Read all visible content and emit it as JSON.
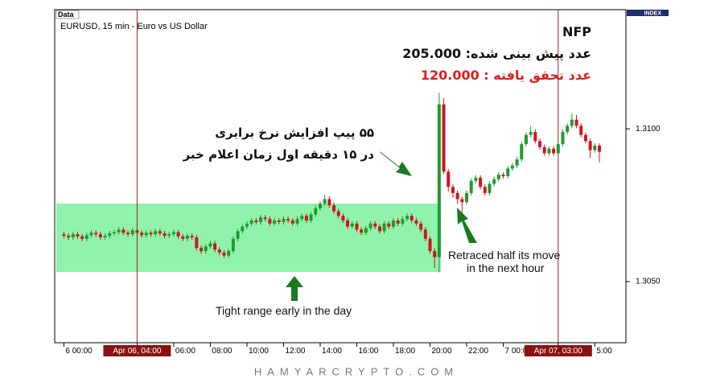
{
  "chart_data": {
    "type": "candlestick",
    "window_label": "Data",
    "title": "EURUSD, 15 min - Euro vs US Dollar",
    "index_label": "INDEX",
    "up_color": "#1f9a2e",
    "down_color": "#d0141e",
    "grid": false,
    "xlim": [
      -0.5,
      30.7
    ],
    "xticks": [
      {
        "value": 0,
        "label": "6 00:00"
      },
      {
        "value": 4,
        "label": "Apr 06, 04:00",
        "highlight": true
      },
      {
        "value": 6,
        "label": "06:00"
      },
      {
        "value": 8,
        "label": "08:00"
      },
      {
        "value": 10,
        "label": "10:00"
      },
      {
        "value": 12,
        "label": "12:00"
      },
      {
        "value": 14,
        "label": "14:00"
      },
      {
        "value": 16,
        "label": "16:00"
      },
      {
        "value": 18,
        "label": "18:00"
      },
      {
        "value": 20,
        "label": "20:00"
      },
      {
        "value": 22,
        "label": "22:00"
      },
      {
        "value": 24,
        "label": "7 00:00"
      },
      {
        "value": 27,
        "label": "Apr 07, 03:00",
        "highlight": true
      },
      {
        "value": 29,
        "label": "5:00"
      }
    ],
    "ylim": [
      1.303,
      1.3139
    ],
    "yticks": [
      {
        "value": 1.305,
        "label": "1.3050"
      },
      {
        "value": 1.31,
        "label": "1.3100"
      }
    ],
    "x": [
      0,
      0.25,
      0.5,
      0.75,
      1,
      1.25,
      1.5,
      1.75,
      2,
      2.25,
      2.5,
      2.75,
      3,
      3.25,
      3.5,
      3.75,
      4,
      4.25,
      4.5,
      4.75,
      5,
      5.25,
      5.5,
      5.75,
      6,
      6.25,
      6.5,
      6.75,
      7,
      7.25,
      7.5,
      7.75,
      8,
      8.25,
      8.5,
      8.75,
      9,
      9.25,
      9.5,
      9.75,
      10,
      10.25,
      10.5,
      10.75,
      11,
      11.25,
      11.5,
      11.75,
      12,
      12.25,
      12.5,
      12.75,
      13,
      13.25,
      13.5,
      13.75,
      14,
      14.25,
      14.5,
      14.75,
      15,
      15.25,
      15.5,
      15.75,
      16,
      16.25,
      16.5,
      16.75,
      17,
      17.25,
      17.5,
      17.75,
      18,
      18.25,
      18.5,
      18.75,
      19,
      19.25,
      19.5,
      19.75,
      20,
      20.25,
      20.5,
      20.75,
      21,
      21.25,
      21.5,
      21.75,
      22,
      22.25,
      22.5,
      22.75,
      23,
      23.25,
      23.5,
      23.75,
      24,
      24.25,
      24.5,
      24.75,
      25,
      25.25,
      25.5,
      25.75,
      26,
      26.25,
      26.5,
      26.75,
      27,
      27.25,
      27.5,
      27.75,
      28,
      28.25,
      28.5,
      28.75,
      29,
      29.25
    ],
    "candles": [
      [
        1.30655,
        1.30663,
        1.30642,
        1.3065
      ],
      [
        1.3065,
        1.30658,
        1.30637,
        1.30645
      ],
      [
        1.30645,
        1.30663,
        1.30637,
        1.30655
      ],
      [
        1.30655,
        1.30663,
        1.3064,
        1.30648
      ],
      [
        1.30648,
        1.30656,
        1.30632,
        1.3064
      ],
      [
        1.3064,
        1.3066,
        1.30632,
        1.30652
      ],
      [
        1.30652,
        1.30668,
        1.30644,
        1.3066
      ],
      [
        1.3066,
        1.30668,
        1.30647,
        1.30655
      ],
      [
        1.30655,
        1.30663,
        1.30637,
        1.30645
      ],
      [
        1.30645,
        1.30658,
        1.30637,
        1.3065
      ],
      [
        1.3065,
        1.30666,
        1.30642,
        1.30658
      ],
      [
        1.30658,
        1.3067,
        1.3065,
        1.30662
      ],
      [
        1.30662,
        1.30678,
        1.30654,
        1.3067
      ],
      [
        1.3067,
        1.30678,
        1.30652,
        1.3066
      ],
      [
        1.3066,
        1.30668,
        1.30647,
        1.30655
      ],
      [
        1.30655,
        1.30676,
        1.30647,
        1.30668
      ],
      [
        1.30668,
        1.30676,
        1.30652,
        1.3066
      ],
      [
        1.3066,
        1.30668,
        1.30644,
        1.30652
      ],
      [
        1.30652,
        1.30668,
        1.30644,
        1.3066
      ],
      [
        1.3066,
        1.30668,
        1.30647,
        1.30655
      ],
      [
        1.30655,
        1.30673,
        1.30647,
        1.30665
      ],
      [
        1.30665,
        1.30673,
        1.3065,
        1.30658
      ],
      [
        1.30658,
        1.30666,
        1.30642,
        1.3065
      ],
      [
        1.3065,
        1.30663,
        1.30642,
        1.30655
      ],
      [
        1.30655,
        1.3067,
        1.30647,
        1.30662
      ],
      [
        1.30662,
        1.3067,
        1.3064,
        1.30648
      ],
      [
        1.30648,
        1.30656,
        1.30632,
        1.3064
      ],
      [
        1.3064,
        1.30658,
        1.30632,
        1.3065
      ],
      [
        1.3065,
        1.30658,
        1.30637,
        1.30645
      ],
      [
        1.30645,
        1.30653,
        1.30602,
        1.3061
      ],
      [
        1.3061,
        1.30618,
        1.30592,
        1.306
      ],
      [
        1.306,
        1.30623,
        1.30592,
        1.30615
      ],
      [
        1.30615,
        1.30633,
        1.30607,
        1.30625
      ],
      [
        1.30625,
        1.30633,
        1.30597,
        1.30605
      ],
      [
        1.30605,
        1.30613,
        1.30587,
        1.30595
      ],
      [
        1.30595,
        1.30603,
        1.30577,
        1.30585
      ],
      [
        1.30585,
        1.30608,
        1.30577,
        1.306
      ],
      [
        1.306,
        1.30648,
        1.30592,
        1.3064
      ],
      [
        1.3064,
        1.30673,
        1.30632,
        1.30665
      ],
      [
        1.30665,
        1.30688,
        1.30657,
        1.3068
      ],
      [
        1.3068,
        1.30698,
        1.30672,
        1.3069
      ],
      [
        1.3069,
        1.30708,
        1.30682,
        1.307
      ],
      [
        1.307,
        1.30708,
        1.30687,
        1.30695
      ],
      [
        1.30695,
        1.30718,
        1.30687,
        1.3071
      ],
      [
        1.3071,
        1.30718,
        1.30697,
        1.30705
      ],
      [
        1.30705,
        1.30713,
        1.30682,
        1.3069
      ],
      [
        1.3069,
        1.30708,
        1.30682,
        1.307
      ],
      [
        1.307,
        1.30708,
        1.30687,
        1.30695
      ],
      [
        1.30695,
        1.30713,
        1.30687,
        1.30705
      ],
      [
        1.30705,
        1.30713,
        1.30692,
        1.307
      ],
      [
        1.307,
        1.30708,
        1.30682,
        1.3069
      ],
      [
        1.3069,
        1.30713,
        1.30682,
        1.30705
      ],
      [
        1.30705,
        1.30723,
        1.30697,
        1.30715
      ],
      [
        1.30715,
        1.30723,
        1.30692,
        1.307
      ],
      [
        1.307,
        1.30728,
        1.30692,
        1.3072
      ],
      [
        1.3072,
        1.30748,
        1.30712,
        1.3074
      ],
      [
        1.3074,
        1.30763,
        1.30732,
        1.30755
      ],
      [
        1.30755,
        1.30785,
        1.30747,
        1.3077
      ],
      [
        1.3077,
        1.3078,
        1.30742,
        1.3075
      ],
      [
        1.3075,
        1.30758,
        1.30722,
        1.3073
      ],
      [
        1.3073,
        1.30738,
        1.30707,
        1.30715
      ],
      [
        1.30715,
        1.30723,
        1.30692,
        1.307
      ],
      [
        1.307,
        1.30708,
        1.30672,
        1.3068
      ],
      [
        1.3068,
        1.30698,
        1.30672,
        1.3069
      ],
      [
        1.3069,
        1.30698,
        1.30662,
        1.3067
      ],
      [
        1.3067,
        1.30678,
        1.30652,
        1.3066
      ],
      [
        1.3066,
        1.30683,
        1.30652,
        1.30675
      ],
      [
        1.30675,
        1.30698,
        1.30667,
        1.3069
      ],
      [
        1.3069,
        1.30698,
        1.30672,
        1.3068
      ],
      [
        1.3068,
        1.30688,
        1.30657,
        1.30665
      ],
      [
        1.30665,
        1.30698,
        1.30657,
        1.3069
      ],
      [
        1.3069,
        1.30698,
        1.30672,
        1.3068
      ],
      [
        1.3068,
        1.30708,
        1.30672,
        1.307
      ],
      [
        1.307,
        1.30708,
        1.30682,
        1.3069
      ],
      [
        1.3069,
        1.30713,
        1.30682,
        1.30705
      ],
      [
        1.30705,
        1.30723,
        1.30697,
        1.30715
      ],
      [
        1.30715,
        1.30723,
        1.30692,
        1.307
      ],
      [
        1.307,
        1.30708,
        1.30682,
        1.3069
      ],
      [
        1.3069,
        1.30698,
        1.30662,
        1.3067
      ],
      [
        1.3067,
        1.30678,
        1.30632,
        1.3064
      ],
      [
        1.3064,
        1.30648,
        1.30592,
        1.306
      ],
      [
        1.306,
        1.30608,
        1.30545,
        1.3058
      ],
      [
        1.3058,
        1.31118,
        1.3053,
        1.3108
      ],
      [
        1.3108,
        1.311,
        1.30852,
        1.3086
      ],
      [
        1.3086,
        1.30868,
        1.30795,
        1.3081
      ],
      [
        1.3081,
        1.30818,
        1.30775,
        1.3079
      ],
      [
        1.3079,
        1.30798,
        1.30755,
        1.3077
      ],
      [
        1.3077,
        1.30778,
        1.3072,
        1.3076
      ],
      [
        1.3076,
        1.30798,
        1.30752,
        1.3079
      ],
      [
        1.3079,
        1.30838,
        1.30782,
        1.3083
      ],
      [
        1.3083,
        1.30848,
        1.30822,
        1.3084
      ],
      [
        1.3084,
        1.30848,
        1.30802,
        1.3081
      ],
      [
        1.3081,
        1.30818,
        1.30782,
        1.3079
      ],
      [
        1.3079,
        1.30828,
        1.30782,
        1.3082
      ],
      [
        1.3082,
        1.30843,
        1.30812,
        1.30835
      ],
      [
        1.30835,
        1.30858,
        1.30827,
        1.3085
      ],
      [
        1.3085,
        1.30858,
        1.30837,
        1.30845
      ],
      [
        1.30845,
        1.30878,
        1.30837,
        1.3087
      ],
      [
        1.3087,
        1.30888,
        1.30862,
        1.3088
      ],
      [
        1.3088,
        1.30908,
        1.30872,
        1.309
      ],
      [
        1.309,
        1.30958,
        1.30892,
        1.3095
      ],
      [
        1.3095,
        1.30988,
        1.30942,
        1.3098
      ],
      [
        1.3098,
        1.3101,
        1.30972,
        1.3099
      ],
      [
        1.3099,
        1.30998,
        1.30952,
        1.3096
      ],
      [
        1.3096,
        1.30968,
        1.30932,
        1.3094
      ],
      [
        1.3094,
        1.30948,
        1.30912,
        1.3092
      ],
      [
        1.3092,
        1.30943,
        1.30912,
        1.30935
      ],
      [
        1.30935,
        1.30943,
        1.30912,
        1.3092
      ],
      [
        1.3092,
        1.30958,
        1.30912,
        1.3095
      ],
      [
        1.3095,
        1.30998,
        1.30942,
        1.3099
      ],
      [
        1.3099,
        1.31018,
        1.30982,
        1.3101
      ],
      [
        1.3101,
        1.3105,
        1.31002,
        1.3103
      ],
      [
        1.3103,
        1.31045,
        1.31002,
        1.3101
      ],
      [
        1.3101,
        1.31018,
        1.30972,
        1.3098
      ],
      [
        1.3098,
        1.30988,
        1.30952,
        1.3096
      ],
      [
        1.3096,
        1.30968,
        1.30905,
        1.3093
      ],
      [
        1.3093,
        1.30953,
        1.30922,
        1.30945
      ],
      [
        1.30945,
        1.30953,
        1.3089,
        1.30925
      ]
    ],
    "nfp_title": "NFP",
    "forecast": "عدد پیش بینی شده: 205.000",
    "actual": "عدد تحقق یافته : 120.000",
    "note_fa": [
      "۵۵ پیپ افزایش نرخ برابری",
      "در ۱۵ دقیقه اول زمان اعلام خبر"
    ],
    "note_retrace": [
      "Retraced half its move",
      "in the next hour"
    ],
    "note_range": "Tight range early in the day"
  },
  "watermark": "HAMYARCRYPTO.COM"
}
